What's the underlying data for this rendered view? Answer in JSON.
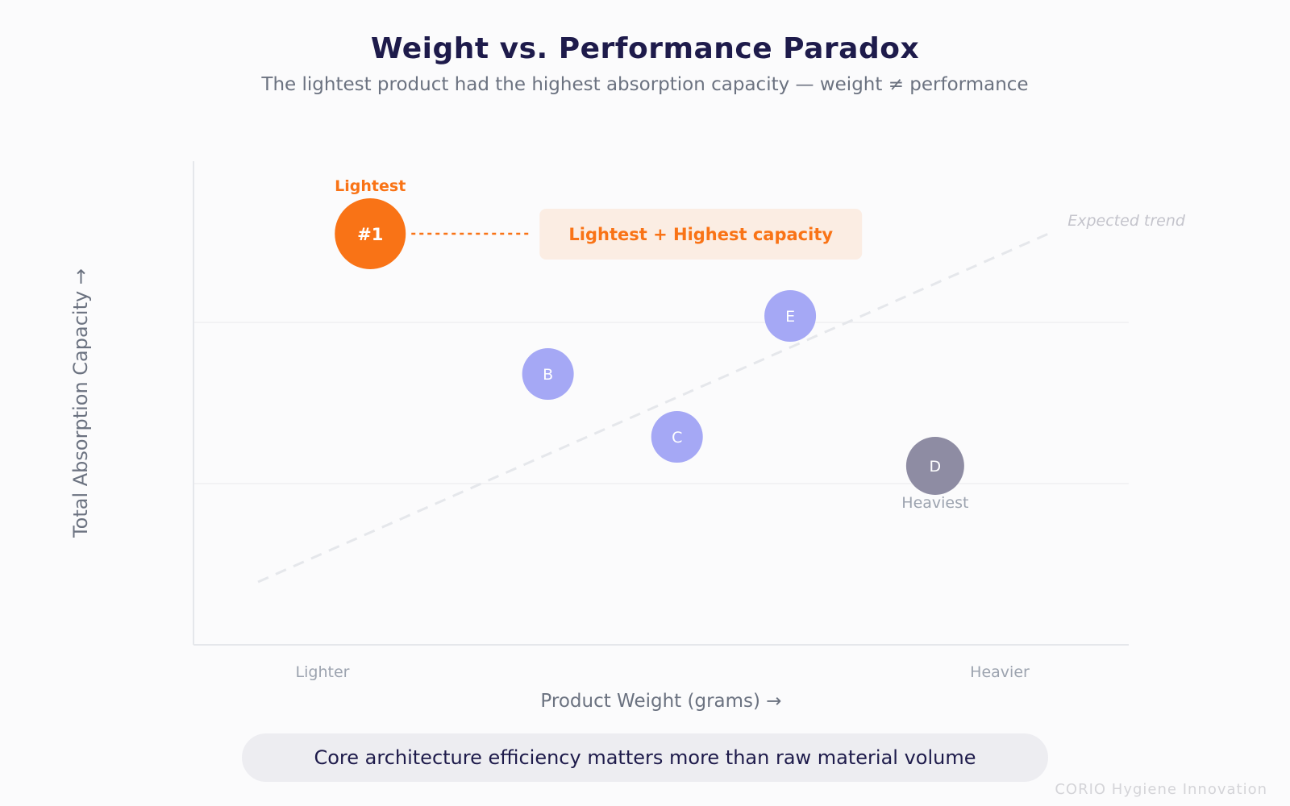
{
  "chart_data": {
    "type": "scatter",
    "title": "Weight vs. Performance Paradox",
    "subtitle": "The lightest product had the highest absorption capacity — weight ≠ performance",
    "xlabel": "Product Weight (grams) →",
    "ylabel": "Total Absorption Capacity →",
    "x_tick_labels": [
      "Lighter",
      "Heavier"
    ],
    "xlim": [
      0,
      100
    ],
    "ylim": [
      0,
      100
    ],
    "grid": "horizontal",
    "points": [
      {
        "label": "#1",
        "x": 18.9,
        "y": 85,
        "color": "#f97316",
        "tag": "Lightest"
      },
      {
        "label": "B",
        "x": 37.9,
        "y": 56,
        "color": "#a5a8f5"
      },
      {
        "label": "C",
        "x": 51.7,
        "y": 43,
        "color": "#a5a8f5"
      },
      {
        "label": "E",
        "x": 63.8,
        "y": 68,
        "color": "#a5a8f5"
      },
      {
        "label": "D",
        "x": 79.3,
        "y": 37,
        "color": "#8e8ca3",
        "tag": "Heaviest"
      }
    ],
    "trend": {
      "label": "Expected trend",
      "x": [
        6.9,
        91.4
      ],
      "y": [
        13,
        85
      ]
    },
    "annotation": "Lightest + Highest capacity",
    "colors": {
      "highlight": "#f97316",
      "others": "#a5a8f5",
      "heaviest": "#8e8ca3",
      "trend": "#e5e7eb"
    }
  },
  "insight": "Core architecture efficiency matters more than raw material volume",
  "credit": "CORIO Hygiene Innovation"
}
